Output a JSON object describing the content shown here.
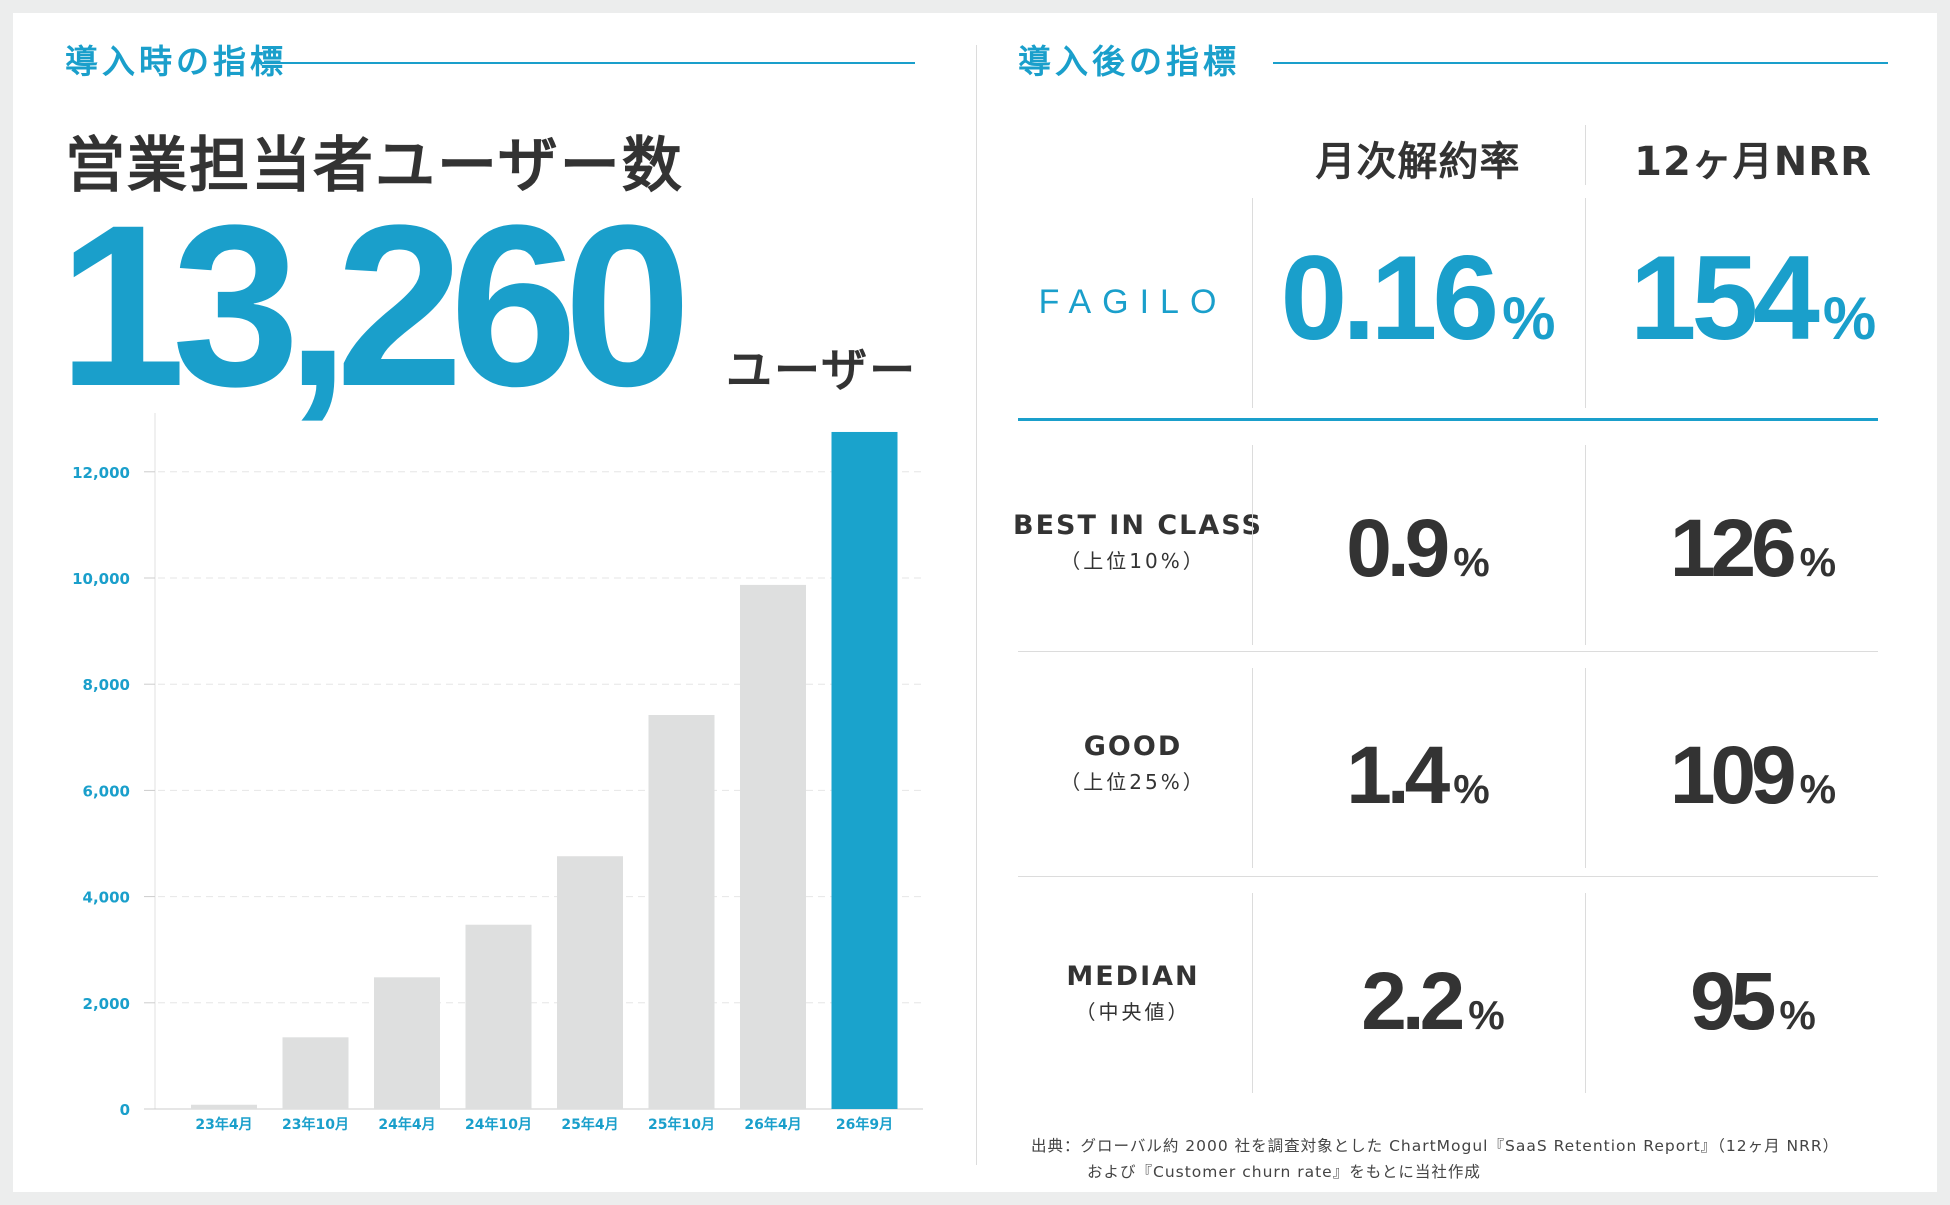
{
  "left": {
    "section_label": "導入時の指標",
    "title": "営業担当者ユーザー数",
    "big_number": "13,260",
    "big_unit": "ユーザー"
  },
  "chart_data": {
    "type": "bar",
    "categories": [
      "23年4月",
      "23年10月",
      "24年4月",
      "24年10月",
      "25年4月",
      "25年10月",
      "26年4月",
      "26年9月"
    ],
    "values": [
      80,
      1350,
      2480,
      3470,
      4760,
      7420,
      9870,
      12750
    ],
    "highlight_index": 7,
    "yticks": [
      "0",
      "2,000",
      "4,000",
      "6,000",
      "8,000",
      "10,000",
      "12,000"
    ],
    "ylim": [
      0,
      12900
    ],
    "grid": true,
    "colors": {
      "bar": "#dedfdf",
      "highlight": "#1aa3cc",
      "tick": "#1a9fcb"
    },
    "title": "",
    "xlabel": "",
    "ylabel": ""
  },
  "right": {
    "section_label": "導入後の指標",
    "columns": [
      "月次解約率",
      "12ヶ月NRR"
    ],
    "brand": "FAGILO",
    "brand_values": [
      {
        "num": "0.16",
        "unit": "%"
      },
      {
        "num": "154",
        "unit": "%"
      }
    ],
    "rows": [
      {
        "name": "BEST IN CLASS",
        "sub": "（上位10%）",
        "values": [
          {
            "num": "0.9",
            "unit": "%"
          },
          {
            "num": "126",
            "unit": "%"
          }
        ]
      },
      {
        "name": "GOOD",
        "sub": "（上位25%）",
        "values": [
          {
            "num": "1.4",
            "unit": "%"
          },
          {
            "num": "109",
            "unit": "%"
          }
        ]
      },
      {
        "name": "MEDIAN",
        "sub": "（中央値）",
        "values": [
          {
            "num": "2.2",
            "unit": "%"
          },
          {
            "num": "95",
            "unit": "%"
          }
        ]
      }
    ],
    "source_line1": "出典：グローバル約 2000 社を調査対象とした ChartMogul『SaaS Retention Report』（12ヶ月 NRR）",
    "source_line2": "および『Customer churn rate』をもとに当社作成"
  },
  "colors": {
    "accent": "#1a9fcb",
    "text": "#333333",
    "background": "#eceded"
  }
}
